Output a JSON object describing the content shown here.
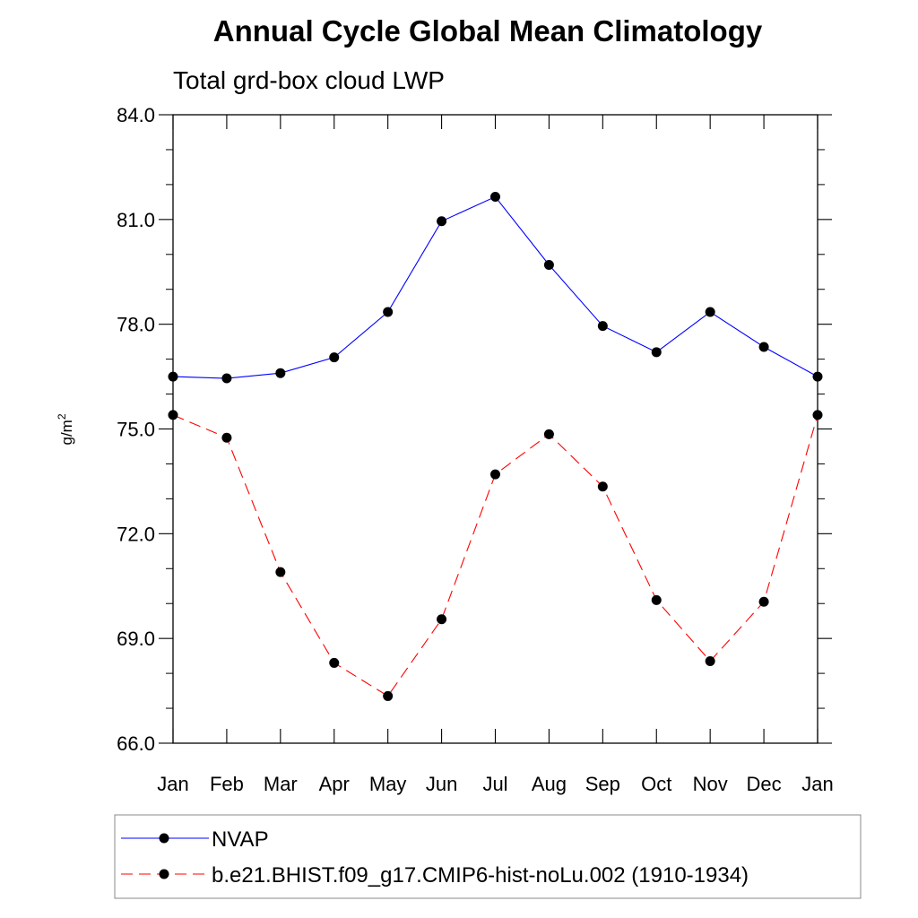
{
  "chart_data": {
    "type": "line",
    "title": "Annual Cycle Global Mean Climatology",
    "subtitle": "Total grd-box cloud LWP",
    "xlabel": "",
    "ylabel": "g/m",
    "ylabel_superscript": "2",
    "categories": [
      "Jan",
      "Feb",
      "Mar",
      "Apr",
      "May",
      "Jun",
      "Jul",
      "Aug",
      "Sep",
      "Oct",
      "Nov",
      "Dec",
      "Jan"
    ],
    "ylim": [
      66.0,
      84.0
    ],
    "yticks": [
      "84.0",
      "81.0",
      "78.0",
      "75.0",
      "72.0",
      "69.0",
      "66.0"
    ],
    "ytick_values": [
      84,
      81,
      78,
      75,
      72,
      69,
      66
    ],
    "grid": false,
    "legend_position": "bottom",
    "series": [
      {
        "name": "NVAP",
        "color": "#0000ff",
        "style": "solid",
        "values": [
          76.5,
          76.45,
          76.6,
          77.05,
          78.35,
          80.95,
          81.65,
          79.7,
          77.95,
          77.2,
          78.35,
          77.35,
          76.5
        ]
      },
      {
        "name": "b.e21.BHIST.f09_g17.CMIP6-hist-noLu.002 (1910-1934)",
        "color": "#ff0000",
        "style": "dashed",
        "values": [
          75.4,
          74.75,
          70.9,
          68.3,
          67.35,
          69.55,
          73.7,
          74.85,
          73.35,
          70.1,
          68.35,
          70.05,
          75.4
        ]
      }
    ]
  }
}
